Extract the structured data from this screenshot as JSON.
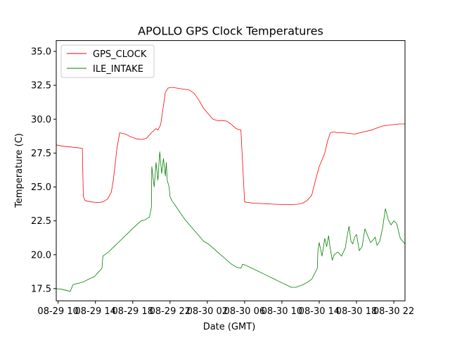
{
  "chart_data": {
    "type": "line",
    "title": "APOLLO GPS Clock Temperatures",
    "xlabel": "Date (GMT)",
    "ylabel": "Temperature (C)",
    "xlim": [
      9.8,
      47.2
    ],
    "ylim": [
      16.6,
      35.8
    ],
    "grid": false,
    "legend": "top-left",
    "x_ticks": [
      {
        "value": 10,
        "label": "08-29 10"
      },
      {
        "value": 14,
        "label": "08-29 14"
      },
      {
        "value": 18,
        "label": "08-29 18"
      },
      {
        "value": 22,
        "label": "08-29 22"
      },
      {
        "value": 26,
        "label": "08-30 02"
      },
      {
        "value": 30,
        "label": "08-30 06"
      },
      {
        "value": 34,
        "label": "08-30 10"
      },
      {
        "value": 38,
        "label": "08-30 14"
      },
      {
        "value": 42,
        "label": "08-30 18"
      },
      {
        "value": 46,
        "label": "08-30 22"
      }
    ],
    "y_ticks": [
      {
        "value": 17.5,
        "label": "17.5"
      },
      {
        "value": 20.0,
        "label": "20.0"
      },
      {
        "value": 22.5,
        "label": "22.5"
      },
      {
        "value": 25.0,
        "label": "25.0"
      },
      {
        "value": 27.5,
        "label": "27.5"
      },
      {
        "value": 30.0,
        "label": "30.0"
      },
      {
        "value": 32.5,
        "label": "32.5"
      },
      {
        "value": 35.0,
        "label": "35.0"
      }
    ],
    "series": [
      {
        "name": "GPS_CLOCK",
        "color": "#ff0000",
        "x": [
          9.8,
          10.6,
          11.3,
          12.0,
          12.6,
          12.7,
          12.9,
          13.5,
          14.3,
          14.8,
          15.3,
          15.7,
          15.9,
          16.1,
          16.3,
          16.6,
          17.2,
          17.8,
          18.4,
          19.0,
          19.5,
          20.0,
          20.5,
          20.7,
          21.0,
          21.3,
          21.5,
          21.8,
          22.2,
          22.7,
          23.1,
          23.6,
          24.1,
          24.6,
          25.1,
          25.6,
          26.1,
          26.6,
          27.1,
          27.6,
          28.1,
          28.6,
          29.1,
          29.6,
          30.0,
          30.4,
          30.6,
          30.8,
          31.0,
          31.8,
          32.6,
          33.4,
          34.2,
          34.9,
          35.6,
          36.2,
          36.7,
          37.2,
          37.6,
          38.0,
          38.3,
          38.6,
          38.9,
          39.2,
          39.5,
          39.7,
          39.9,
          40.0,
          40.6,
          41.2,
          41.8,
          42.4,
          43.0,
          43.6,
          44.2,
          44.8,
          45.4,
          46.0,
          46.6,
          47.2
        ],
        "y": [
          28.1,
          28.0,
          27.95,
          27.9,
          27.85,
          24.3,
          24.0,
          23.9,
          23.85,
          23.9,
          24.1,
          24.6,
          25.4,
          26.6,
          27.8,
          29.0,
          28.9,
          28.7,
          28.55,
          28.5,
          28.6,
          29.0,
          29.3,
          29.2,
          29.6,
          31.0,
          32.0,
          32.3,
          32.35,
          32.3,
          32.25,
          32.2,
          32.15,
          31.9,
          31.4,
          30.8,
          30.4,
          30.0,
          29.9,
          29.9,
          29.85,
          29.6,
          29.3,
          29.2,
          23.9,
          23.85,
          23.85,
          23.8,
          23.8,
          23.78,
          23.75,
          23.72,
          23.7,
          23.7,
          23.72,
          23.8,
          24.0,
          24.4,
          25.5,
          26.5,
          27.0,
          27.5,
          28.4,
          29.0,
          29.05,
          29.05,
          29.0,
          29.0,
          29.0,
          28.95,
          28.9,
          29.0,
          29.1,
          29.2,
          29.35,
          29.5,
          29.55,
          29.6,
          29.65,
          29.65
        ]
      },
      {
        "name": "ILE_INTAKE",
        "color": "#008000",
        "x": [
          9.8,
          10.4,
          11.0,
          11.3,
          11.6,
          12.2,
          12.7,
          13.3,
          13.9,
          14.3,
          14.7,
          14.8,
          15.4,
          16.0,
          16.6,
          17.2,
          17.8,
          18.4,
          18.9,
          19.4,
          19.8,
          20.0,
          20.05,
          20.3,
          20.5,
          20.7,
          20.9,
          21.1,
          21.3,
          21.5,
          21.6,
          21.7,
          21.9,
          22.0,
          22.2,
          22.6,
          23.1,
          23.6,
          24.1,
          24.6,
          25.1,
          25.6,
          26.1,
          26.6,
          27.1,
          27.6,
          28.1,
          28.6,
          29.1,
          29.6,
          29.8,
          30.2,
          30.8,
          31.4,
          32.0,
          32.6,
          33.2,
          33.8,
          34.4,
          35.0,
          35.5,
          35.9,
          36.3,
          36.8,
          37.2,
          37.5,
          37.8,
          37.85,
          38.0,
          38.3,
          38.6,
          38.8,
          39.0,
          39.2,
          39.4,
          39.6,
          40.0,
          40.4,
          40.8,
          41.0,
          41.2,
          41.4,
          41.6,
          41.8,
          42.0,
          42.3,
          42.6,
          42.9,
          43.2,
          43.5,
          43.8,
          44.0,
          44.2,
          44.5,
          44.8,
          45.1,
          45.4,
          45.7,
          46.0,
          46.3,
          46.7,
          47.2
        ],
        "y": [
          17.5,
          17.45,
          17.35,
          17.3,
          17.8,
          17.9,
          18.0,
          18.2,
          18.4,
          18.7,
          19.0,
          19.9,
          20.2,
          20.6,
          21.0,
          21.4,
          21.8,
          22.2,
          22.5,
          22.6,
          22.8,
          23.5,
          26.5,
          25.0,
          26.8,
          25.5,
          27.6,
          26.0,
          27.1,
          25.8,
          26.8,
          25.5,
          25.0,
          24.3,
          24.0,
          23.6,
          23.1,
          22.6,
          22.2,
          21.8,
          21.4,
          21.0,
          20.8,
          20.5,
          20.2,
          19.9,
          19.6,
          19.3,
          19.1,
          19.0,
          19.3,
          19.2,
          19.0,
          18.8,
          18.6,
          18.4,
          18.2,
          18.0,
          17.8,
          17.6,
          17.6,
          17.7,
          17.8,
          18.0,
          18.2,
          18.6,
          19.0,
          20.2,
          20.9,
          19.9,
          21.2,
          20.6,
          21.4,
          20.4,
          19.6,
          20.0,
          20.2,
          19.9,
          20.5,
          21.4,
          22.1,
          21.0,
          20.8,
          21.3,
          21.5,
          20.3,
          20.6,
          21.9,
          21.4,
          20.9,
          21.1,
          21.3,
          20.7,
          21.0,
          22.0,
          23.4,
          22.6,
          22.2,
          22.5,
          22.3,
          21.2,
          20.8
        ]
      }
    ]
  }
}
